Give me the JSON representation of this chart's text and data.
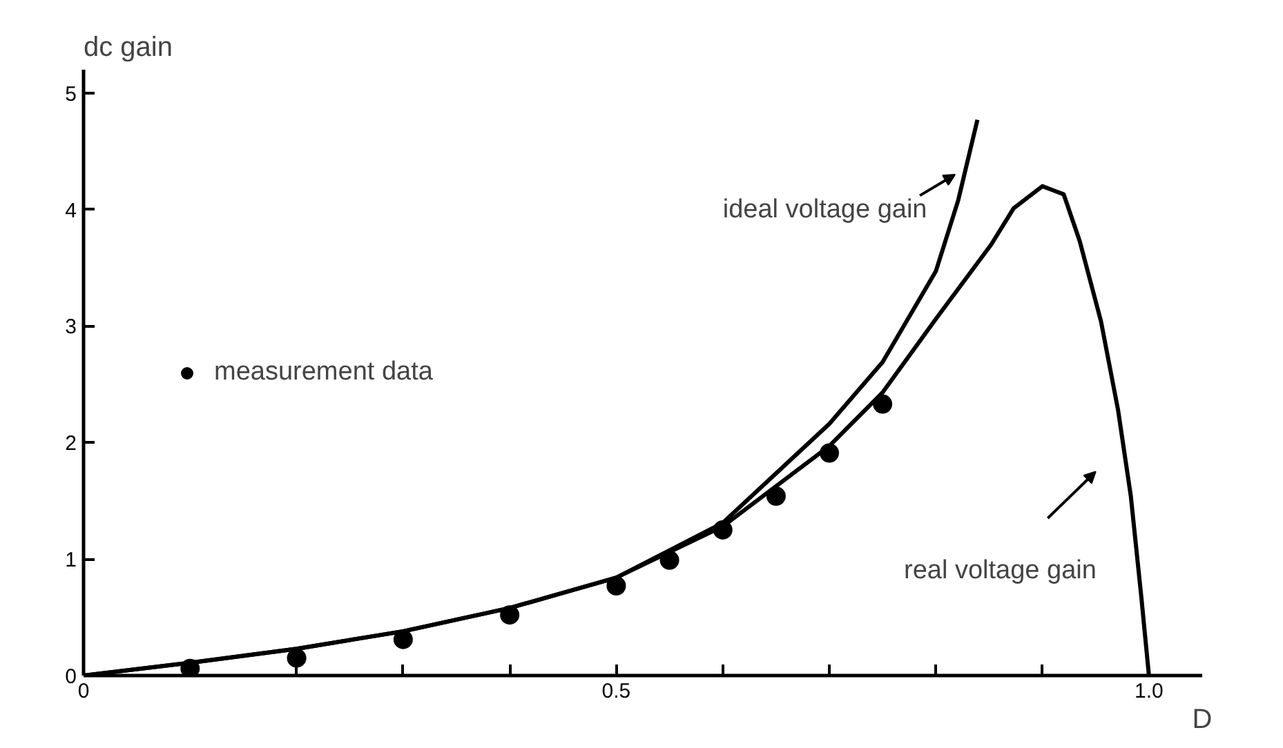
{
  "chart_data": {
    "type": "line",
    "xlabel": "D",
    "ylabel": "dc gain",
    "xlim": [
      0,
      1.05
    ],
    "ylim": [
      0,
      5.2
    ],
    "xticks": [
      {
        "value": 0,
        "label": "0"
      },
      {
        "value": 0.1,
        "label": null
      },
      {
        "value": 0.2,
        "label": null
      },
      {
        "value": 0.3,
        "label": null
      },
      {
        "value": 0.4,
        "label": null
      },
      0.5,
      {
        "value": 0.6,
        "label": null
      },
      {
        "value": 0.7,
        "label": null
      },
      {
        "value": 0.8,
        "label": null
      },
      {
        "value": 0.9,
        "label": null
      },
      {
        "value": 1.0,
        "label": "1.0"
      }
    ],
    "yticks": [
      {
        "value": 0,
        "label": "0"
      },
      1,
      2,
      3,
      4,
      5
    ],
    "grid": false,
    "legend": "left",
    "series": [
      {
        "name": "ideal voltage gain",
        "color": "#000000",
        "x": [
          0,
          0.1,
          0.2,
          0.3,
          0.4,
          0.5,
          0.6,
          0.7,
          0.75,
          0.8,
          0.821,
          0.839
        ],
        "values": [
          0,
          0.11,
          0.23,
          0.38,
          0.58,
          0.84,
          1.31,
          2.16,
          2.69,
          3.47,
          4.08,
          4.77
        ]
      },
      {
        "name": "real voltage gain",
        "color": "#000000",
        "x": [
          0,
          0.1,
          0.2,
          0.3,
          0.4,
          0.5,
          0.6,
          0.7,
          0.75,
          0.8,
          0.852,
          0.873,
          0.9,
          0.92,
          0.935,
          0.955,
          0.971,
          0.983,
          0.993,
          1.0
        ],
        "values": [
          0,
          0.11,
          0.23,
          0.38,
          0.58,
          0.84,
          1.28,
          1.97,
          2.43,
          3.06,
          3.7,
          4.01,
          4.2,
          4.13,
          3.73,
          3.04,
          2.28,
          1.54,
          0.66,
          0
        ]
      },
      {
        "name": "measurement data",
        "type": "scatter",
        "marker": "circle",
        "color": "#000000",
        "x": [
          0.1,
          0.2,
          0.3,
          0.4,
          0.5,
          0.55,
          0.6,
          0.65,
          0.7,
          0.75
        ],
        "values": [
          0.06,
          0.15,
          0.31,
          0.52,
          0.77,
          0.99,
          1.25,
          1.54,
          1.91,
          2.33
        ]
      }
    ]
  }
}
